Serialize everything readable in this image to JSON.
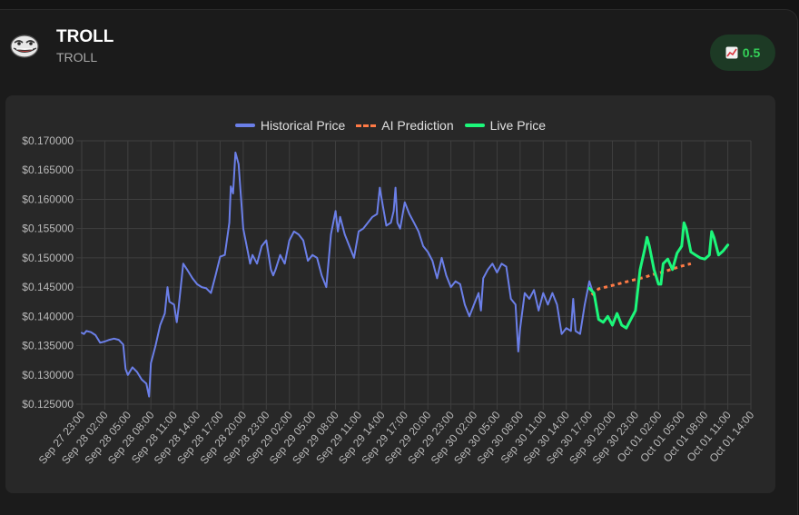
{
  "header": {
    "name": "TROLL",
    "symbol": "TROLL",
    "badge_value": "0.5",
    "badge_icon": "chart-up-icon"
  },
  "colors": {
    "historical": "#6b7fe8",
    "prediction": "#ff7a45",
    "live": "#1cf77a",
    "badge_text": "#34d058"
  },
  "chart_data": {
    "type": "line",
    "ylim": [
      0.125,
      0.17
    ],
    "y_ticks": [
      0.125,
      0.13,
      0.135,
      0.14,
      0.145,
      0.15,
      0.155,
      0.16,
      0.165,
      0.17
    ],
    "y_tick_labels": [
      "$0.125000",
      "$0.130000",
      "$0.135000",
      "$0.140000",
      "$0.145000",
      "$0.150000",
      "$0.155000",
      "$0.160000",
      "$0.165000",
      "$0.170000"
    ],
    "x_tick_labels": [
      "Sep 27 23:00",
      "Sep 28 02:00",
      "Sep 28 05:00",
      "Sep 28 08:00",
      "Sep 28 11:00",
      "Sep 28 14:00",
      "Sep 28 17:00",
      "Sep 28 20:00",
      "Sep 28 23:00",
      "Sep 29 02:00",
      "Sep 29 05:00",
      "Sep 29 08:00",
      "Sep 29 11:00",
      "Sep 29 14:00",
      "Sep 29 17:00",
      "Sep 29 20:00",
      "Sep 29 23:00",
      "Sep 30 02:00",
      "Sep 30 05:00",
      "Sep 30 08:00",
      "Sep 30 11:00",
      "Sep 30 14:00",
      "Sep 30 17:00",
      "Sep 30 20:00",
      "Sep 30 23:00",
      "Oct 01 02:00",
      "Oct 01 05:00",
      "Oct 01 08:00",
      "Oct 01 11:00",
      "Oct 01 14:00"
    ],
    "grid": true,
    "legend_position": "top-center",
    "series": [
      {
        "name": "Historical Price",
        "points": [
          [
            0,
            0.1372
          ],
          [
            0.5,
            0.137
          ],
          [
            1,
            0.1375
          ],
          [
            2,
            0.1373
          ],
          [
            3,
            0.1368
          ],
          [
            4,
            0.1355
          ],
          [
            5,
            0.1357
          ],
          [
            6,
            0.136
          ],
          [
            7,
            0.1362
          ],
          [
            8,
            0.136
          ],
          [
            9,
            0.1352
          ],
          [
            9.5,
            0.131
          ],
          [
            10,
            0.13
          ],
          [
            11,
            0.1313
          ],
          [
            12,
            0.1305
          ],
          [
            13,
            0.1292
          ],
          [
            14,
            0.1285
          ],
          [
            14.6,
            0.1263
          ],
          [
            15,
            0.132
          ],
          [
            16,
            0.135
          ],
          [
            17,
            0.1385
          ],
          [
            18,
            0.1405
          ],
          [
            18.6,
            0.145
          ],
          [
            19,
            0.1425
          ],
          [
            20,
            0.142
          ],
          [
            20.6,
            0.139
          ],
          [
            21,
            0.1415
          ],
          [
            22,
            0.149
          ],
          [
            23,
            0.1478
          ],
          [
            24,
            0.1465
          ],
          [
            25,
            0.1455
          ],
          [
            26,
            0.145
          ],
          [
            27,
            0.1448
          ],
          [
            28,
            0.144
          ],
          [
            29,
            0.147
          ],
          [
            30,
            0.1502
          ],
          [
            31,
            0.1505
          ],
          [
            32,
            0.156
          ],
          [
            32.3,
            0.1622
          ],
          [
            32.8,
            0.161
          ],
          [
            33.3,
            0.168
          ],
          [
            34,
            0.166
          ],
          [
            35,
            0.155
          ],
          [
            36,
            0.151
          ],
          [
            36.5,
            0.149
          ],
          [
            37,
            0.1505
          ],
          [
            38,
            0.149
          ],
          [
            39,
            0.152
          ],
          [
            40,
            0.153
          ],
          [
            41,
            0.148
          ],
          [
            41.5,
            0.147
          ],
          [
            42,
            0.148
          ],
          [
            43,
            0.1505
          ],
          [
            44,
            0.149
          ],
          [
            45,
            0.153
          ],
          [
            46,
            0.1545
          ],
          [
            47,
            0.154
          ],
          [
            48,
            0.153
          ],
          [
            49,
            0.1495
          ],
          [
            50,
            0.1505
          ],
          [
            51,
            0.15
          ],
          [
            52,
            0.147
          ],
          [
            53,
            0.145
          ],
          [
            54,
            0.154
          ],
          [
            55,
            0.158
          ],
          [
            55.5,
            0.1545
          ],
          [
            56,
            0.157
          ],
          [
            57,
            0.154
          ],
          [
            58,
            0.152
          ],
          [
            59,
            0.15
          ],
          [
            60,
            0.1545
          ],
          [
            61,
            0.155
          ],
          [
            62,
            0.156
          ],
          [
            63,
            0.157
          ],
          [
            64,
            0.1575
          ],
          [
            64.6,
            0.162
          ],
          [
            65,
            0.16
          ],
          [
            66,
            0.1555
          ],
          [
            67,
            0.156
          ],
          [
            67.6,
            0.158
          ],
          [
            68,
            0.162
          ],
          [
            68.4,
            0.156
          ],
          [
            69,
            0.155
          ],
          [
            70,
            0.1595
          ],
          [
            71,
            0.1575
          ],
          [
            72,
            0.156
          ],
          [
            73,
            0.1545
          ],
          [
            74,
            0.152
          ],
          [
            75,
            0.151
          ],
          [
            76,
            0.1495
          ],
          [
            76.5,
            0.148
          ],
          [
            77,
            0.1465
          ],
          [
            78,
            0.15
          ],
          [
            79,
            0.147
          ],
          [
            80,
            0.145
          ],
          [
            81,
            0.146
          ],
          [
            82,
            0.1455
          ],
          [
            83,
            0.142
          ],
          [
            84,
            0.14
          ],
          [
            85,
            0.142
          ],
          [
            86,
            0.144
          ],
          [
            86.5,
            0.141
          ],
          [
            87,
            0.1465
          ],
          [
            88,
            0.148
          ],
          [
            89,
            0.149
          ],
          [
            90,
            0.1475
          ],
          [
            91,
            0.149
          ],
          [
            92,
            0.1485
          ],
          [
            93,
            0.143
          ],
          [
            94,
            0.142
          ],
          [
            94.6,
            0.134
          ],
          [
            95,
            0.138
          ],
          [
            96,
            0.144
          ],
          [
            97,
            0.143
          ],
          [
            98,
            0.1445
          ],
          [
            99,
            0.141
          ],
          [
            100,
            0.144
          ],
          [
            101,
            0.142
          ],
          [
            102,
            0.144
          ],
          [
            103,
            0.142
          ],
          [
            104,
            0.137
          ],
          [
            105,
            0.138
          ],
          [
            106,
            0.1375
          ],
          [
            106.5,
            0.143
          ],
          [
            107,
            0.1375
          ],
          [
            108,
            0.137
          ],
          [
            109,
            0.142
          ],
          [
            110,
            0.146
          ],
          [
            111,
            0.1435
          ]
        ]
      },
      {
        "name": "AI Prediction",
        "points": [
          [
            110.5,
            0.1437
          ],
          [
            112,
            0.1447
          ],
          [
            114,
            0.1451
          ],
          [
            116,
            0.1455
          ],
          [
            118,
            0.1459
          ],
          [
            120,
            0.1463
          ],
          [
            122,
            0.1467
          ],
          [
            124,
            0.1472
          ],
          [
            126,
            0.1476
          ],
          [
            128,
            0.1481
          ],
          [
            130,
            0.1486
          ],
          [
            132,
            0.149
          ]
        ]
      },
      {
        "name": "Live Price",
        "points": [
          [
            110,
            0.1448
          ],
          [
            111,
            0.144
          ],
          [
            112,
            0.1395
          ],
          [
            113,
            0.139
          ],
          [
            114,
            0.14
          ],
          [
            115,
            0.1385
          ],
          [
            116,
            0.1405
          ],
          [
            117,
            0.1385
          ],
          [
            118,
            0.138
          ],
          [
            119,
            0.1395
          ],
          [
            120,
            0.141
          ],
          [
            121,
            0.148
          ],
          [
            122,
            0.1515
          ],
          [
            122.5,
            0.1535
          ],
          [
            123,
            0.152
          ],
          [
            124,
            0.148
          ],
          [
            125,
            0.1455
          ],
          [
            125.5,
            0.1455
          ],
          [
            126,
            0.149
          ],
          [
            127,
            0.1498
          ],
          [
            128,
            0.148
          ],
          [
            129,
            0.1508
          ],
          [
            130,
            0.152
          ],
          [
            130.5,
            0.156
          ],
          [
            131,
            0.155
          ],
          [
            132,
            0.151
          ],
          [
            133,
            0.1505
          ],
          [
            134,
            0.15
          ],
          [
            135,
            0.1498
          ],
          [
            136,
            0.1505
          ],
          [
            136.5,
            0.1545
          ],
          [
            137,
            0.1535
          ],
          [
            138,
            0.1505
          ],
          [
            139,
            0.1512
          ],
          [
            140,
            0.1522
          ]
        ]
      }
    ]
  }
}
